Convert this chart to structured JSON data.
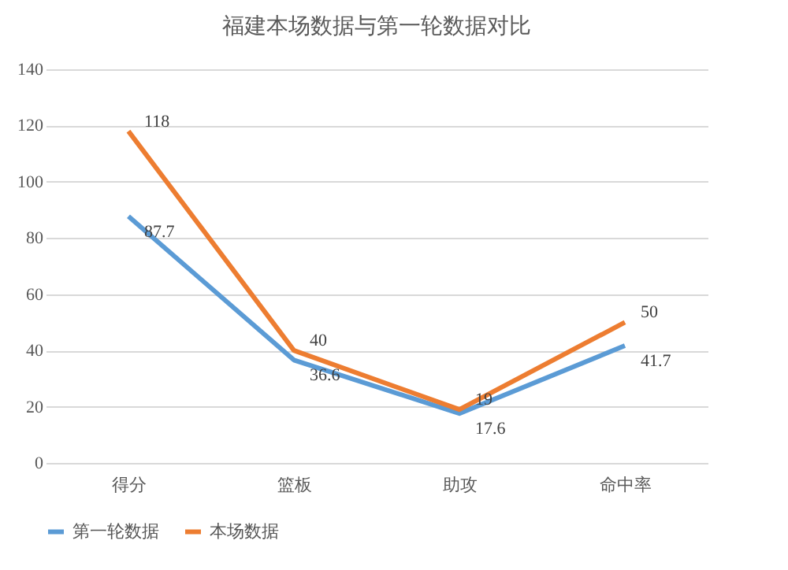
{
  "chart_data": {
    "type": "line",
    "title": "福建本场数据与第一轮数据对比",
    "categories": [
      "得分",
      "篮板",
      "助攻",
      "命中率"
    ],
    "series": [
      {
        "name": "第一轮数据",
        "color": "#5b9bd5",
        "values": [
          87.7,
          36.6,
          17.6,
          41.7
        ]
      },
      {
        "name": "本场数据",
        "color": "#ed7d31",
        "values": [
          118,
          40,
          19,
          50
        ]
      }
    ],
    "ylim": [
      0,
      140
    ],
    "yticks": [
      0,
      20,
      40,
      60,
      80,
      100,
      120,
      140
    ],
    "grid": "y",
    "legend": "bottom",
    "data_labels": true,
    "marker": "none",
    "line_style": "solid"
  }
}
